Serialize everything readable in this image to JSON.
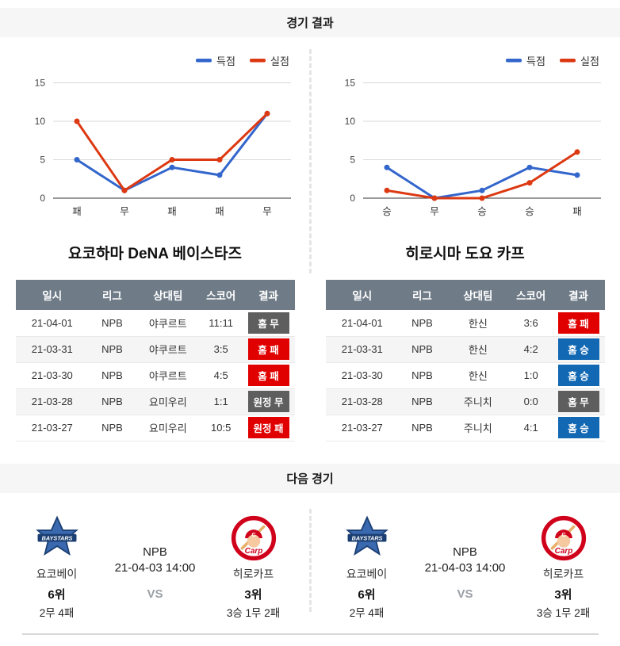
{
  "page": {
    "results_header": "경기 결과",
    "next_header": "다음 경기"
  },
  "colors": {
    "scored_line": "#3366cc",
    "conceded_line": "#dc3912",
    "win_badge": "#1268b3",
    "lose_badge": "#e00000",
    "draw_badge": "#5e5e5e",
    "table_header_bg": "#6f7c88"
  },
  "chart_data": [
    {
      "type": "line",
      "team": "요코하마 DeNA 베이스타즈",
      "categories": [
        "패",
        "무",
        "패",
        "패",
        "무"
      ],
      "series": [
        {
          "name": "득점",
          "color": "#3366cc",
          "values": [
            5,
            1,
            4,
            3,
            11
          ]
        },
        {
          "name": "실점",
          "color": "#dc3912",
          "values": [
            10,
            1,
            5,
            5,
            11
          ]
        }
      ],
      "yticks": [
        0,
        5,
        10,
        15
      ],
      "ylim": [
        0,
        16.5
      ],
      "grid": true,
      "legend_position": "top-right"
    },
    {
      "type": "line",
      "team": "히로시마 도요 카프",
      "categories": [
        "승",
        "무",
        "승",
        "승",
        "패"
      ],
      "series": [
        {
          "name": "득점",
          "color": "#3366cc",
          "values": [
            4,
            0,
            1,
            4,
            3
          ]
        },
        {
          "name": "실점",
          "color": "#dc3912",
          "values": [
            1,
            0,
            0,
            2,
            6
          ]
        }
      ],
      "yticks": [
        0,
        5,
        10,
        15
      ],
      "ylim": [
        0,
        16.5
      ],
      "grid": true,
      "legend_position": "top-right"
    }
  ],
  "teams": [
    {
      "name": "요코하마 DeNA 베이스타즈",
      "table": {
        "headers": [
          "일시",
          "리그",
          "상대팀",
          "스코어",
          "결과"
        ],
        "rows": [
          {
            "date": "21-04-01",
            "league": "NPB",
            "opponent": "야쿠르트",
            "score": "11:11",
            "result": "홈 무",
            "result_type": "draw"
          },
          {
            "date": "21-03-31",
            "league": "NPB",
            "opponent": "야쿠르트",
            "score": "3:5",
            "result": "홈 패",
            "result_type": "lose"
          },
          {
            "date": "21-03-30",
            "league": "NPB",
            "opponent": "야쿠르트",
            "score": "4:5",
            "result": "홈 패",
            "result_type": "lose"
          },
          {
            "date": "21-03-28",
            "league": "NPB",
            "opponent": "요미우리",
            "score": "1:1",
            "result": "원정 무",
            "result_type": "draw"
          },
          {
            "date": "21-03-27",
            "league": "NPB",
            "opponent": "요미우리",
            "score": "10:5",
            "result": "원정 패",
            "result_type": "lose"
          }
        ]
      }
    },
    {
      "name": "히로시마 도요 카프",
      "table": {
        "headers": [
          "일시",
          "리그",
          "상대팀",
          "스코어",
          "결과"
        ],
        "rows": [
          {
            "date": "21-04-01",
            "league": "NPB",
            "opponent": "한신",
            "score": "3:6",
            "result": "홈 패",
            "result_type": "lose"
          },
          {
            "date": "21-03-31",
            "league": "NPB",
            "opponent": "한신",
            "score": "4:2",
            "result": "홈 승",
            "result_type": "win"
          },
          {
            "date": "21-03-30",
            "league": "NPB",
            "opponent": "한신",
            "score": "1:0",
            "result": "홈 승",
            "result_type": "win"
          },
          {
            "date": "21-03-28",
            "league": "NPB",
            "opponent": "주니치",
            "score": "0:0",
            "result": "홈 무",
            "result_type": "draw"
          },
          {
            "date": "21-03-27",
            "league": "NPB",
            "opponent": "주니치",
            "score": "4:1",
            "result": "홈 승",
            "result_type": "win"
          }
        ]
      }
    }
  ],
  "next_matches": [
    {
      "league": "NPB",
      "datetime": "21-04-03 14:00",
      "vs": "VS",
      "home": {
        "name": "요코베이",
        "rank": "6위",
        "record": "2무 4패",
        "logo": "baystars-logo"
      },
      "away": {
        "name": "히로카프",
        "rank": "3위",
        "record": "3승 1무 2패",
        "logo": "carp-logo"
      }
    },
    {
      "league": "NPB",
      "datetime": "21-04-03 14:00",
      "vs": "VS",
      "home": {
        "name": "요코베이",
        "rank": "6위",
        "record": "2무 4패",
        "logo": "baystars-logo"
      },
      "away": {
        "name": "히로카프",
        "rank": "3위",
        "record": "3승 1무 2패",
        "logo": "carp-logo"
      }
    }
  ]
}
